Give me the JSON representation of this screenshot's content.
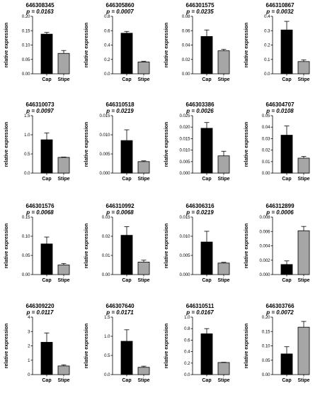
{
  "chart_data": [
    {
      "type": "bar",
      "title": "646308345",
      "subtitle": "p = 0.0163",
      "ylabel": "relative expression",
      "categories": [
        "Cap",
        "Stipe"
      ],
      "values": [
        0.138,
        0.071
      ],
      "errors": [
        0.006,
        0.01
      ],
      "ylim": [
        0,
        0.2
      ],
      "yticks": [
        "0.00",
        "0.05",
        "0.10",
        "0.15",
        "0.20"
      ],
      "colors": [
        "#000000",
        "#a6a6a6"
      ]
    },
    {
      "type": "bar",
      "title": "646305860",
      "subtitle": "p = 0.0007",
      "ylabel": "relative expression",
      "categories": [
        "Cap",
        "Stipe"
      ],
      "values": [
        0.565,
        0.165
      ],
      "errors": [
        0.025,
        0.01
      ],
      "ylim": [
        0,
        0.8
      ],
      "yticks": [
        "0.0",
        "0.2",
        "0.4",
        "0.6",
        "0.8"
      ],
      "colors": [
        "#000000",
        "#a6a6a6"
      ]
    },
    {
      "type": "bar",
      "title": "646301575",
      "subtitle": "p = 0.0235",
      "ylabel": "relative expression",
      "categories": [
        "Cap",
        "Stipe"
      ],
      "values": [
        0.052,
        0.032
      ],
      "errors": [
        0.009,
        0.002
      ],
      "ylim": [
        0,
        0.08
      ],
      "yticks": [
        "0.00",
        "0.02",
        "0.04",
        "0.06",
        "0.08"
      ],
      "colors": [
        "#000000",
        "#a6a6a6"
      ]
    },
    {
      "type": "bar",
      "title": "646310867",
      "subtitle": "p = 0.0032",
      "ylabel": "relative expression",
      "categories": [
        "Cap",
        "Stipe"
      ],
      "values": [
        0.305,
        0.085
      ],
      "errors": [
        0.06,
        0.012
      ],
      "ylim": [
        0,
        0.4
      ],
      "yticks": [
        "0.0",
        "0.1",
        "0.2",
        "0.3",
        "0.4"
      ],
      "colors": [
        "#000000",
        "#a6a6a6"
      ]
    },
    {
      "type": "bar",
      "title": "646310073",
      "subtitle": "p = 0.0097",
      "ylabel": "relative expression",
      "categories": [
        "Cap",
        "Stipe"
      ],
      "values": [
        0.87,
        0.41
      ],
      "errors": [
        0.18,
        0.01
      ],
      "ylim": [
        0,
        1.5
      ],
      "yticks": [
        "0.0",
        "0.5",
        "1.0",
        "1.5"
      ],
      "colors": [
        "#000000",
        "#a6a6a6"
      ]
    },
    {
      "type": "bar",
      "title": "646310518",
      "subtitle": "p = 0.0219",
      "ylabel": "relative expression",
      "categories": [
        "Cap",
        "Stipe"
      ],
      "values": [
        0.0085,
        0.003
      ],
      "errors": [
        0.0028,
        0.0002
      ],
      "ylim": [
        0,
        0.015
      ],
      "yticks": [
        "0.000",
        "0.005",
        "0.010",
        "0.015"
      ],
      "colors": [
        "#000000",
        "#a6a6a6"
      ]
    },
    {
      "type": "bar",
      "title": "646303386",
      "subtitle": "p = 0.0026",
      "ylabel": "relative expression",
      "categories": [
        "Cap",
        "Stipe"
      ],
      "values": [
        0.0195,
        0.0075
      ],
      "errors": [
        0.0025,
        0.002
      ],
      "ylim": [
        0,
        0.025
      ],
      "yticks": [
        "0.000",
        "0.005",
        "0.010",
        "0.015",
        "0.020",
        "0.025"
      ],
      "colors": [
        "#000000",
        "#a6a6a6"
      ]
    },
    {
      "type": "bar",
      "title": "646304707",
      "subtitle": "p = 0.0108",
      "ylabel": "relative expression",
      "categories": [
        "Cap",
        "Stipe"
      ],
      "values": [
        0.033,
        0.013
      ],
      "errors": [
        0.008,
        0.0015
      ],
      "ylim": [
        0,
        0.05
      ],
      "yticks": [
        "0.00",
        "0.01",
        "0.02",
        "0.03",
        "0.04",
        "0.05"
      ],
      "colors": [
        "#000000",
        "#a6a6a6"
      ]
    },
    {
      "type": "bar",
      "title": "646301576",
      "subtitle": "p = 0.0068",
      "ylabel": "relative expression",
      "categories": [
        "Cap",
        "Stipe"
      ],
      "values": [
        0.08,
        0.025
      ],
      "errors": [
        0.018,
        0.004
      ],
      "ylim": [
        0,
        0.15
      ],
      "yticks": [
        "0.00",
        "0.05",
        "0.10",
        "0.15"
      ],
      "colors": [
        "#000000",
        "#a6a6a6"
      ]
    },
    {
      "type": "bar",
      "title": "646310992",
      "subtitle": "p = 0.0068",
      "ylabel": "relative expression",
      "categories": [
        "Cap",
        "Stipe"
      ],
      "values": [
        0.0205,
        0.0065
      ],
      "errors": [
        0.0045,
        0.001
      ],
      "ylim": [
        0,
        0.03
      ],
      "yticks": [
        "0.00",
        "0.01",
        "0.02",
        "0.03"
      ],
      "colors": [
        "#000000",
        "#a6a6a6"
      ]
    },
    {
      "type": "bar",
      "title": "646306316",
      "subtitle": "p = 0.0219",
      "ylabel": "relative expression",
      "categories": [
        "Cap",
        "Stipe"
      ],
      "values": [
        0.0085,
        0.003
      ],
      "errors": [
        0.0028,
        0.0002
      ],
      "ylim": [
        0,
        0.015
      ],
      "yticks": [
        "0.000",
        "0.005",
        "0.010",
        "0.015"
      ],
      "colors": [
        "#000000",
        "#a6a6a6"
      ]
    },
    {
      "type": "bar",
      "title": "646312899",
      "subtitle": "p = 0.0006",
      "ylabel": "relative expression",
      "categories": [
        "Cap",
        "Stipe"
      ],
      "values": [
        0.0014,
        0.0061
      ],
      "errors": [
        0.0005,
        0.0006
      ],
      "ylim": [
        0,
        0.008
      ],
      "yticks": [
        "0.000",
        "0.002",
        "0.004",
        "0.006",
        "0.008"
      ],
      "colors": [
        "#000000",
        "#a6a6a6"
      ]
    },
    {
      "type": "bar",
      "title": "646309220",
      "subtitle": "p = 0.0117",
      "ylabel": "relative expression",
      "categories": [
        "Cap",
        "Stipe"
      ],
      "values": [
        2.25,
        0.6
      ],
      "errors": [
        0.65,
        0.08
      ],
      "ylim": [
        0,
        4
      ],
      "yticks": [
        "0",
        "1",
        "2",
        "3",
        "4"
      ],
      "colors": [
        "#000000",
        "#a6a6a6"
      ]
    },
    {
      "type": "bar",
      "title": "646307640",
      "subtitle": "p = 0.0171",
      "ylabel": "relative expression",
      "categories": [
        "Cap",
        "Stipe"
      ],
      "values": [
        0.87,
        0.19
      ],
      "errors": [
        0.3,
        0.03
      ],
      "ylim": [
        0,
        1.5
      ],
      "yticks": [
        "0.0",
        "0.5",
        "1.0",
        "1.5"
      ],
      "colors": [
        "#000000",
        "#a6a6a6"
      ]
    },
    {
      "type": "bar",
      "title": "646310511",
      "subtitle": "p = 0.0167",
      "ylabel": "relative expression",
      "categories": [
        "Cap",
        "Stipe"
      ],
      "values": [
        0.71,
        0.21
      ],
      "errors": [
        0.09,
        0.005
      ],
      "ylim": [
        0,
        1.0
      ],
      "yticks": [
        "0.0",
        "0.2",
        "0.4",
        "0.6",
        "0.8",
        "1.0"
      ],
      "colors": [
        "#000000",
        "#a6a6a6"
      ]
    },
    {
      "type": "bar",
      "title": "646303766",
      "subtitle": "p = 0.0072",
      "ylabel": "relative expression",
      "categories": [
        "Cap",
        "Stipe"
      ],
      "values": [
        0.072,
        0.165
      ],
      "errors": [
        0.025,
        0.02
      ],
      "ylim": [
        0,
        0.2
      ],
      "yticks": [
        "0.00",
        "0.05",
        "0.10",
        "0.15",
        "0.20"
      ],
      "colors": [
        "#000000",
        "#a6a6a6"
      ]
    }
  ]
}
